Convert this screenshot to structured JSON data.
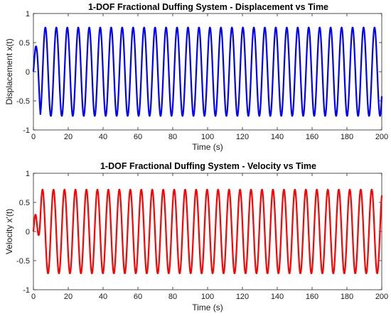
{
  "chart_data": [
    {
      "type": "line",
      "title": "1-DOF Fractional Duffing System - Displacement vs Time",
      "xlabel": "Time (s)",
      "ylabel": "Displacement x(t)",
      "xlim": [
        0,
        200
      ],
      "ylim": [
        -1,
        1
      ],
      "xticks": [
        0,
        20,
        40,
        60,
        80,
        100,
        120,
        140,
        160,
        180,
        200
      ],
      "yticks": [
        -1,
        -0.5,
        0,
        0.5,
        1
      ],
      "grid": false,
      "legend": "none",
      "series": [
        {
          "color": "#0000ff",
          "function": "steady oscillation after short transient",
          "amplitude": 0.76,
          "period": 6.3,
          "start_value": 0,
          "transient_peak": 0.45,
          "transient_end_time": 4,
          "end_value": -0.42
        }
      ]
    },
    {
      "type": "line",
      "title": "1-DOF Fractional Duffing System - Velocity vs Time",
      "xlabel": "Time (s)",
      "ylabel": "Velocity x'(t)",
      "xlim": [
        0,
        200
      ],
      "ylim": [
        -1,
        1
      ],
      "xticks": [
        0,
        20,
        40,
        60,
        80,
        100,
        120,
        140,
        160,
        180,
        200
      ],
      "yticks": [
        -1,
        -0.5,
        0,
        0.5,
        1
      ],
      "grid": false,
      "legend": "none",
      "series": [
        {
          "color": "#ff0000",
          "function": "steady oscillation after short transient",
          "amplitude": 0.72,
          "period": 6.3,
          "start_value": 0,
          "transient_peak": 0.42,
          "transient_end_time": 4,
          "end_value": 0.62
        }
      ]
    }
  ]
}
